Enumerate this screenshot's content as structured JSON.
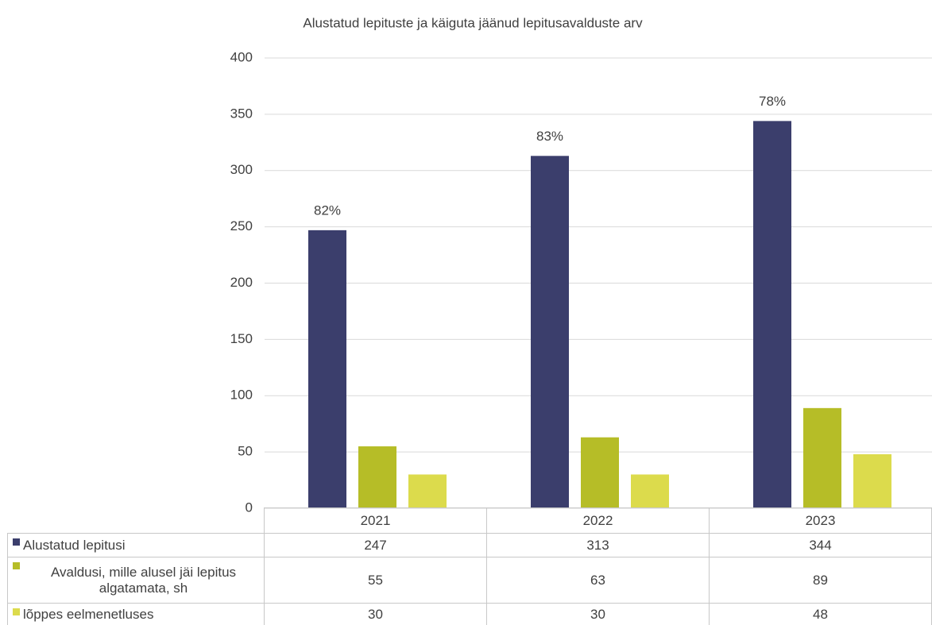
{
  "chart_data": {
    "type": "bar",
    "title": "Alustatud lepituste ja käiguta jäänud lepitusavalduste arv",
    "categories": [
      "2021",
      "2022",
      "2023"
    ],
    "series": [
      {
        "name": "Alustatud lepitusi",
        "color": "#3b3e6c",
        "values": [
          247,
          313,
          344
        ]
      },
      {
        "name": "Avaldusi, mille alusel jäi lepitus algatamata, sh",
        "color": "#b6bd27",
        "values": [
          55,
          63,
          89
        ]
      },
      {
        "name": "lõppes eelmenetluses",
        "color": "#dcdb4c",
        "values": [
          30,
          30,
          48
        ]
      }
    ],
    "annotations": [
      "82%",
      "83%",
      "78%"
    ],
    "ylim": [
      0,
      400
    ],
    "yticks": [
      0,
      50,
      100,
      150,
      200,
      250,
      300,
      350,
      400
    ],
    "grid": true
  }
}
